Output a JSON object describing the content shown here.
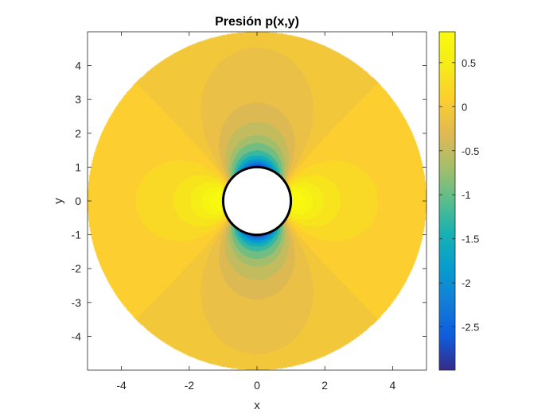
{
  "chart_data": {
    "type": "contour",
    "title": "Presión p(x,y)",
    "xlabel": "x",
    "ylabel": "y",
    "xlim": [
      -5,
      5
    ],
    "ylim": [
      -5,
      5
    ],
    "x_ticks": [
      -4,
      -2,
      0,
      2,
      4
    ],
    "y_ticks": [
      -4,
      -3,
      -2,
      -1,
      0,
      1,
      2,
      3,
      4
    ],
    "domain": {
      "shape": "annulus",
      "inner_radius": 1,
      "outer_radius": 5
    },
    "field": "p = 2*cos(2*theta)/r^2 - 1/r^4",
    "levels": [
      -2.9,
      -2.6,
      -2.3,
      -2.0,
      -1.7,
      -1.4,
      -1.1,
      -0.8,
      -0.6,
      -0.4,
      -0.25,
      -0.1,
      0.0,
      0.15,
      0.3,
      0.45,
      0.6,
      0.75
    ],
    "colormap": "parula",
    "clim": [
      -2.99,
      0.85
    ],
    "colorbar": {
      "ticks": [
        0.5,
        0,
        -0.5,
        -1,
        -1.5,
        -2,
        -2.5
      ],
      "tick_labels": [
        "0.5",
        "0",
        "-0.5",
        "-1",
        "-1.5",
        "-2",
        "-2.5"
      ]
    },
    "grid": false,
    "legend": "none"
  },
  "colors": {
    "cylinder_outline": "#000000",
    "cylinder_fill": "#ffffff",
    "axes_color": "#262626"
  }
}
